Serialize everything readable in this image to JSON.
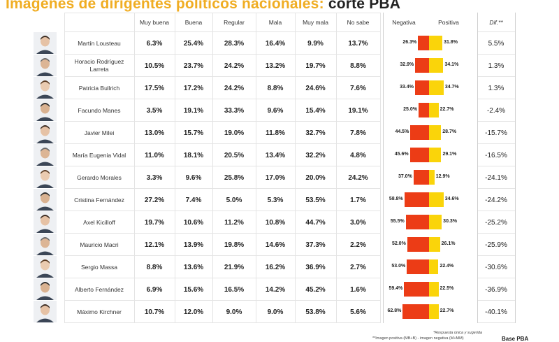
{
  "title": {
    "part1": "Imágenes de dirigentes políticos nacionales:",
    "part2": "corte PBA"
  },
  "headers": [
    "Muy buena",
    "Buena",
    "Regular",
    "Mala",
    "Muy mala",
    "No sabe",
    "Negativa",
    "Positiva",
    "Dif.**"
  ],
  "footnotes": {
    "note1": "*Respuesta única y sugerida",
    "note2": "**Imagen positiva (MB+B) - imagen negativa (M+MM)",
    "base": "Base PBA"
  },
  "colors": {
    "title_accent": "#f0ad23",
    "negative": "#ec3c16",
    "positive": "#fad40a"
  },
  "chart_data": {
    "type": "table",
    "columns": [
      "Muy buena",
      "Buena",
      "Regular",
      "Mala",
      "Muy mala",
      "No sabe",
      "Negativa",
      "Positiva",
      "Dif.**"
    ],
    "rows": [
      {
        "name": "Martín Lousteau",
        "values": [
          "6.3%",
          "25.4%",
          "28.3%",
          "16.4%",
          "9.9%",
          "13.7%"
        ],
        "negative": 26.3,
        "positive": 31.8,
        "negative_label": "26.3%",
        "positive_label": "31.8%",
        "dif": "5.5%"
      },
      {
        "name": "Horacio Rodríguez Larreta",
        "values": [
          "10.5%",
          "23.7%",
          "24.2%",
          "13.2%",
          "19.7%",
          "8.8%"
        ],
        "negative": 32.9,
        "positive": 34.1,
        "negative_label": "32.9%",
        "positive_label": "34.1%",
        "dif": "1.3%"
      },
      {
        "name": "Patricia Bullrich",
        "values": [
          "17.5%",
          "17.2%",
          "24.2%",
          "8.8%",
          "24.6%",
          "7.6%"
        ],
        "negative": 33.4,
        "positive": 34.7,
        "negative_label": "33.4%",
        "positive_label": "34.7%",
        "dif": "1.3%"
      },
      {
        "name": "Facundo Manes",
        "values": [
          "3.5%",
          "19.1%",
          "33.3%",
          "9.6%",
          "15.4%",
          "19.1%"
        ],
        "negative": 25.0,
        "positive": 22.7,
        "negative_label": "25.0%",
        "positive_label": "22.7%",
        "dif": "-2.4%"
      },
      {
        "name": "Javier Milei",
        "values": [
          "13.0%",
          "15.7%",
          "19.0%",
          "11.8%",
          "32.7%",
          "7.8%"
        ],
        "negative": 44.5,
        "positive": 28.7,
        "negative_label": "44.5%",
        "positive_label": "28.7%",
        "dif": "-15.7%"
      },
      {
        "name": "María Eugenia Vidal",
        "values": [
          "11.0%",
          "18.1%",
          "20.5%",
          "13.4%",
          "32.2%",
          "4.8%"
        ],
        "negative": 45.6,
        "positive": 29.1,
        "negative_label": "45.6%",
        "positive_label": "29.1%",
        "dif": "-16.5%"
      },
      {
        "name": "Gerardo Morales",
        "values": [
          "3.3%",
          "9.6%",
          "25.8%",
          "17.0%",
          "20.0%",
          "24.2%"
        ],
        "negative": 37.0,
        "positive": 12.9,
        "negative_label": "37.0%",
        "positive_label": "12.9%",
        "dif": "-24.1%"
      },
      {
        "name": "Cristina Fernández",
        "values": [
          "27.2%",
          "7.4%",
          "5.0%",
          "5.3%",
          "53.5%",
          "1.7%"
        ],
        "negative": 58.8,
        "positive": 34.6,
        "negative_label": "58.8%",
        "positive_label": "34.6%",
        "dif": "-24.2%"
      },
      {
        "name": "Axel Kicilloff",
        "values": [
          "19.7%",
          "10.6%",
          "11.2%",
          "10.8%",
          "44.7%",
          "3.0%"
        ],
        "negative": 55.5,
        "positive": 30.3,
        "negative_label": "55.5%",
        "positive_label": "30.3%",
        "dif": "-25.2%"
      },
      {
        "name": "Mauricio Macri",
        "values": [
          "12.1%",
          "13.9%",
          "19.8%",
          "14.6%",
          "37.3%",
          "2.2%"
        ],
        "negative": 52.0,
        "positive": 26.1,
        "negative_label": "52.0%",
        "positive_label": "26.1%",
        "dif": "-25.9%"
      },
      {
        "name": "Sergio Massa",
        "values": [
          "8.8%",
          "13.6%",
          "21.9%",
          "16.2%",
          "36.9%",
          "2.7%"
        ],
        "negative": 53.0,
        "positive": 22.4,
        "negative_label": "53.0%",
        "positive_label": "22.4%",
        "dif": "-30.6%"
      },
      {
        "name": "Alberto Fernández",
        "values": [
          "6.9%",
          "15.6%",
          "16.5%",
          "14.2%",
          "45.2%",
          "1.6%"
        ],
        "negative": 59.4,
        "positive": 22.5,
        "negative_label": "59.4%",
        "positive_label": "22.5%",
        "dif": "-36.9%"
      },
      {
        "name": "Máximo Kirchner",
        "values": [
          "10.7%",
          "12.0%",
          "9.0%",
          "9.0%",
          "53.8%",
          "5.6%"
        ],
        "negative": 62.8,
        "positive": 22.7,
        "negative_label": "62.8%",
        "positive_label": "22.7%",
        "dif": "-40.1%"
      }
    ]
  }
}
